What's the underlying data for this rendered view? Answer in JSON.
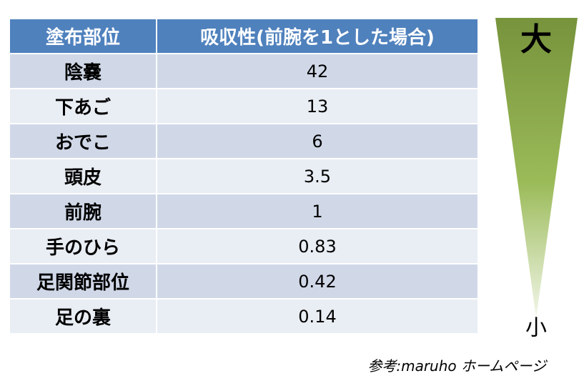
{
  "table": {
    "header": [
      "塗布部位",
      "吸収性(前腕を1とした場合)"
    ],
    "rows": [
      [
        "陰嚢",
        42
      ],
      [
        "下あご",
        13
      ],
      [
        "おでこ",
        6
      ],
      [
        "頭皮",
        3.5
      ],
      [
        "前腕",
        1
      ],
      [
        "手のひら",
        0.83
      ],
      [
        "足関節部位",
        0.42
      ],
      [
        "足の裏",
        0.14
      ]
    ]
  },
  "scale": {
    "max": "大",
    "min": "小"
  },
  "source": "参考:maruho ホームページ"
}
